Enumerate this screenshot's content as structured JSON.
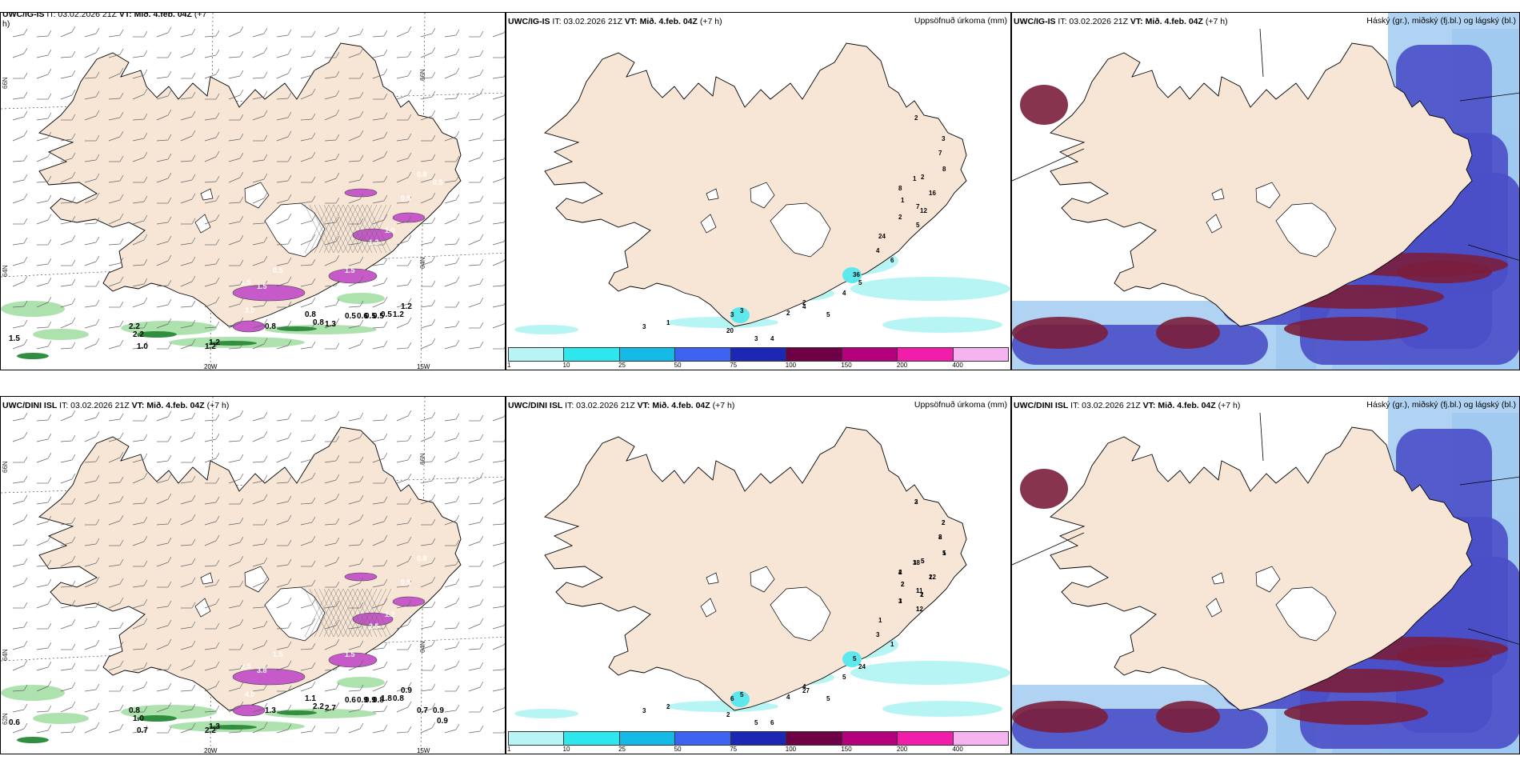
{
  "row1": {
    "left": {
      "header": {
        "model": "UWC/IG-IS",
        "it": "IT: 03.02.2026 21Z",
        "vt_label": "VT:",
        "vt": "Mið. 4.feb. 04Z",
        "lead": "(+7",
        "lead2": "h)"
      },
      "lat_labels": [
        "66N",
        "64N"
      ],
      "lon_labels": [
        "20W",
        "15W"
      ],
      "green_labels": [
        "1.5",
        "2.2",
        "1.2",
        "2.2",
        "1.0",
        "0.8",
        "1.2",
        "0.8",
        "1.3",
        "0.8",
        "0.5",
        "0.6",
        "0.5",
        "0.5",
        "0.5",
        "1.2",
        "1.2"
      ],
      "pink_labels": [
        "3.0",
        "1.5",
        "1.5",
        "0.5",
        "1.5",
        "1.2",
        "1.0",
        "0.5",
        "0.8",
        "0.5"
      ]
    },
    "middle": {
      "header": {
        "model": "UWC/IG-IS",
        "it": "IT: 03.02.2026 21Z",
        "vt_label": "VT:",
        "vt": "Mið. 4.feb. 04Z",
        "lead": "(+7 h)"
      },
      "title": "Uppsöfnuð úrkoma (mm)",
      "values": [
        "2",
        "3",
        "7",
        "8",
        "16",
        "12",
        "5",
        "7",
        "2",
        "1",
        "8",
        "1",
        "2",
        "24",
        "4",
        "6",
        "36",
        "5",
        "4",
        "5",
        "2",
        "2",
        "3",
        "3",
        "20",
        "4",
        "4",
        "3",
        "1",
        "3"
      ]
    },
    "right": {
      "header": {
        "model": "UWC/IG-IS",
        "it": "IT: 03.02.2026 21Z",
        "vt_label": "VT:",
        "vt": "Mið. 4.feb. 04Z",
        "lead": "(+7 h)"
      },
      "title": "Háský (gr.), miðský (fj.bl.) og lágský (bl.)"
    }
  },
  "row2": {
    "left": {
      "header": {
        "model": "UWC/DINI ISL",
        "it": "IT: 03.02.2026 21Z",
        "vt_label": "VT:",
        "vt": "Mið. 4.feb. 04Z",
        "lead": "(+7 h)"
      },
      "lat_labels": [
        "66N",
        "64N",
        "62N"
      ],
      "lon_labels": [
        "20W",
        "15W"
      ],
      "green_labels": [
        "0.6",
        "0.8",
        "1.3",
        "1.0",
        "0.7",
        "1.3",
        "2.2",
        "2.2",
        "2.7",
        "1.1",
        "0.6",
        "0.9",
        "0.9",
        "0.8",
        "1.8",
        "0.8",
        "0.9",
        "0.7",
        "0.9",
        "0.9"
      ],
      "pink_labels": [
        "4.0",
        "2.5",
        "3.8",
        "1.5",
        "1.5",
        "2.5",
        "1.2",
        "0.5",
        "0.8"
      ]
    },
    "middle": {
      "header": {
        "model": "UWC/DINI ISL",
        "it": "IT: 03.02.2026 21Z",
        "vt_label": "VT:",
        "vt": "Mið. 4.feb. 04Z",
        "lead": "(+7 h)"
      },
      "title": "Uppsöfnuð úrkoma (mm)",
      "values": [
        "2",
        "2",
        "8",
        "5",
        "12",
        "2",
        "12",
        "11",
        "5",
        "18",
        "2",
        "2",
        "1",
        "1",
        "3",
        "1",
        "5",
        "24",
        "5",
        "5",
        "4",
        "4",
        "6",
        "5",
        "2",
        "27",
        "6",
        "5",
        "2",
        "3",
        "3",
        "2",
        "2",
        "1",
        "2",
        "1",
        "1",
        "1",
        "5",
        "3",
        "4",
        "2",
        "3"
      ]
    },
    "right": {
      "header": {
        "model": "UWC/DINI ISL",
        "it": "IT: 03.02.2026 21Z",
        "vt_label": "VT:",
        "vt": "Mið. 4.feb. 04Z",
        "lead": "(+7 h)"
      },
      "title": "Háský (gr.), miðský (fj.bl.) og lágský (bl.)"
    }
  },
  "legend": {
    "ticks": [
      "1",
      "10",
      "25",
      "50",
      "75",
      "100",
      "150",
      "200",
      "400"
    ],
    "colors": [
      "#b7f5f5",
      "#2ee6ee",
      "#14b9e6",
      "#3c64f0",
      "#1c28b4",
      "#6e0046",
      "#b4007d",
      "#f01eaa",
      "#f5b4f0"
    ]
  },
  "colors": {
    "land": "#f7e6d6",
    "cloud_high": "#3f8f5f",
    "cloud_mid": "#7a1e3c",
    "cloud_low": "#4a4fc8",
    "cloud_lowlight": "#9ec8f0",
    "snow": "#c65ac8",
    "rain": "#2f8f3f",
    "precip_light": "#b7f5f5"
  }
}
